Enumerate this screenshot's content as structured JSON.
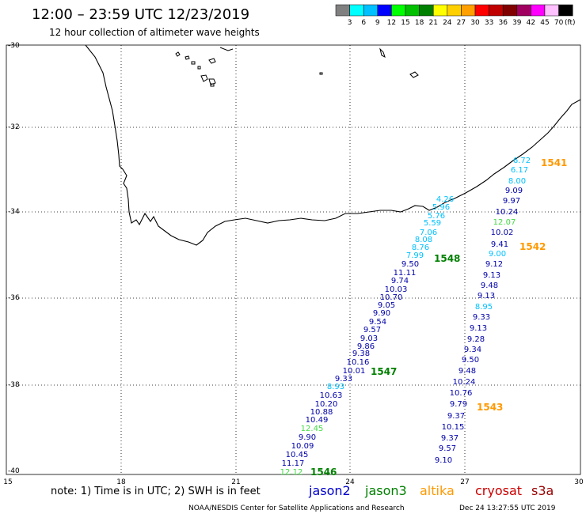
{
  "header": {
    "title": "12:00  –  23:59 UTC 12/23/2019",
    "subtitle": "12 hour collection of altimeter wave heights"
  },
  "colorbar": {
    "unit": "(ft)",
    "bins": [
      {
        "color": "#808080",
        "label": "3"
      },
      {
        "color": "#00ffff",
        "label": "6"
      },
      {
        "color": "#00c0ff",
        "label": "9"
      },
      {
        "color": "#0000ff",
        "label": "12"
      },
      {
        "color": "#00ff00",
        "label": "15"
      },
      {
        "color": "#00c000",
        "label": "18"
      },
      {
        "color": "#008000",
        "label": "21"
      },
      {
        "color": "#ffff00",
        "label": "24"
      },
      {
        "color": "#ffd000",
        "label": "27"
      },
      {
        "color": "#ffa000",
        "label": "30"
      },
      {
        "color": "#ff0000",
        "label": "33"
      },
      {
        "color": "#c00000",
        "label": "36"
      },
      {
        "color": "#800000",
        "label": "39"
      },
      {
        "color": "#a00060",
        "label": "42"
      },
      {
        "color": "#ff00ff",
        "label": "45"
      },
      {
        "color": "#ffc0ff",
        "label": "70"
      },
      {
        "color": "#000000",
        "label": ""
      }
    ]
  },
  "axes": {
    "lon_ticks": [
      "15",
      "18",
      "21",
      "24",
      "27",
      "30"
    ],
    "lat_ticks": [
      "-30",
      "-32",
      "-34",
      "-36",
      "-38",
      "-40"
    ]
  },
  "legend": {
    "note": "note:  1) Time is in UTC;  2) SWH is in feet",
    "satellites": [
      {
        "name": "jason2",
        "color": "#0000cc"
      },
      {
        "name": "jason3",
        "color": "#008000"
      },
      {
        "name": "altika",
        "color": "#ff9900"
      },
      {
        "name": "cryosat",
        "color": "#cc0000"
      },
      {
        "name": "s3a",
        "color": "#990000"
      }
    ]
  },
  "footer": {
    "credit": "NOAA/NESDIS Center for Satellite Applications and Research",
    "timestamp": "Dec 24 13:27:55 UTC 2019"
  },
  "passes": [
    {
      "id": "1541",
      "color": "#ff9900"
    },
    {
      "id": "1542",
      "color": "#ff9900"
    },
    {
      "id": "1543",
      "color": "#ff9900"
    },
    {
      "id": "1546",
      "color": "#008000"
    },
    {
      "id": "1547",
      "color": "#008000"
    },
    {
      "id": "1548",
      "color": "#008000"
    }
  ],
  "observations": [
    {
      "v": "6.72",
      "color": "#00c0ff"
    },
    {
      "v": "6.17",
      "color": "#00c0ff"
    },
    {
      "v": "8.00",
      "color": "#00c0ff"
    },
    {
      "v": "9.09",
      "color": "#0000aa"
    },
    {
      "v": "9.97",
      "color": "#0000aa"
    },
    {
      "v": "10.24",
      "color": "#0000aa"
    },
    {
      "v": "12.07",
      "color": "#44dd44"
    },
    {
      "v": "10.02",
      "color": "#0000aa"
    },
    {
      "v": "9.41",
      "color": "#0000aa"
    },
    {
      "v": "9.00",
      "color": "#00c0ff"
    },
    {
      "v": "9.12",
      "color": "#0000aa"
    },
    {
      "v": "9.13",
      "color": "#0000aa"
    },
    {
      "v": "9.48",
      "color": "#0000aa"
    },
    {
      "v": "9.13",
      "color": "#0000aa"
    },
    {
      "v": "8.95",
      "color": "#00c0ff"
    },
    {
      "v": "9.33",
      "color": "#0000aa"
    },
    {
      "v": "9.13",
      "color": "#0000aa"
    },
    {
      "v": "9.28",
      "color": "#0000aa"
    },
    {
      "v": "9.34",
      "color": "#0000aa"
    },
    {
      "v": "9.50",
      "color": "#0000aa"
    },
    {
      "v": "9.48",
      "color": "#0000aa"
    },
    {
      "v": "10.24",
      "color": "#0000aa"
    },
    {
      "v": "10.76",
      "color": "#0000aa"
    },
    {
      "v": "9.79",
      "color": "#0000aa"
    },
    {
      "v": "9.37",
      "color": "#0000aa"
    },
    {
      "v": "10.15",
      "color": "#0000aa"
    },
    {
      "v": "9.37",
      "color": "#0000aa"
    },
    {
      "v": "9.57",
      "color": "#0000aa"
    },
    {
      "v": "9.10",
      "color": "#0000aa"
    },
    {
      "v": "4.26",
      "color": "#00c0ff"
    },
    {
      "v": "5.96",
      "color": "#00c0ff"
    },
    {
      "v": "5.76",
      "color": "#00c0ff"
    },
    {
      "v": "5.59",
      "color": "#00c0ff"
    },
    {
      "v": "7.06",
      "color": "#00c0ff"
    },
    {
      "v": "8.08",
      "color": "#00c0ff"
    },
    {
      "v": "8.76",
      "color": "#00c0ff"
    },
    {
      "v": "7.99",
      "color": "#00c0ff"
    },
    {
      "v": "9.50",
      "color": "#0000aa"
    },
    {
      "v": "11.11",
      "color": "#0000aa"
    },
    {
      "v": "9.74",
      "color": "#0000aa"
    },
    {
      "v": "10.03",
      "color": "#0000aa"
    },
    {
      "v": "10.70",
      "color": "#0000aa"
    },
    {
      "v": "9.05",
      "color": "#0000aa"
    },
    {
      "v": "9.90",
      "color": "#0000aa"
    },
    {
      "v": "9.54",
      "color": "#0000aa"
    },
    {
      "v": "9.57",
      "color": "#0000aa"
    },
    {
      "v": "9.03",
      "color": "#0000aa"
    },
    {
      "v": "9.86",
      "color": "#0000aa"
    },
    {
      "v": "9.38",
      "color": "#0000aa"
    },
    {
      "v": "10.16",
      "color": "#0000aa"
    },
    {
      "v": "10.01",
      "color": "#0000aa"
    },
    {
      "v": "9.33",
      "color": "#0000aa"
    },
    {
      "v": "8.93",
      "color": "#00c0ff"
    },
    {
      "v": "10.63",
      "color": "#0000aa"
    },
    {
      "v": "10.20",
      "color": "#0000aa"
    },
    {
      "v": "10.88",
      "color": "#0000aa"
    },
    {
      "v": "10.49",
      "color": "#0000aa"
    },
    {
      "v": "12.45",
      "color": "#44dd44"
    },
    {
      "v": "9.90",
      "color": "#0000aa"
    },
    {
      "v": "10.09",
      "color": "#0000aa"
    },
    {
      "v": "10.45",
      "color": "#0000aa"
    },
    {
      "v": "11.17",
      "color": "#0000aa"
    },
    {
      "v": "12.12",
      "color": "#44dd44"
    }
  ]
}
